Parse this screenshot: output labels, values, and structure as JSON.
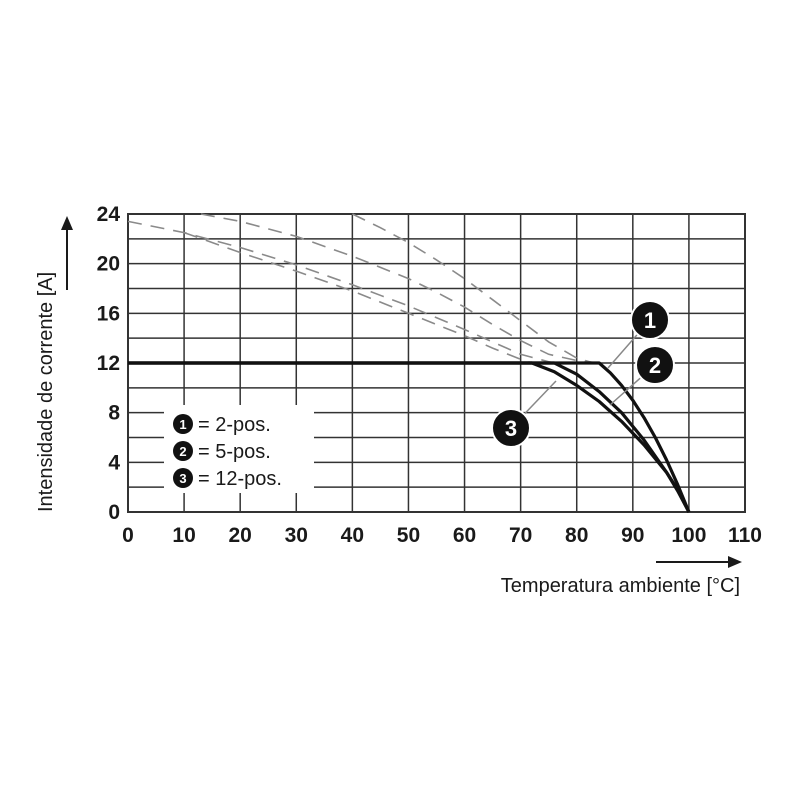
{
  "chart_data": {
    "type": "line",
    "title": "",
    "xlabel": "Temperatura ambiente [°C]",
    "ylabel": "Intensidade de corrente [A]",
    "xlim": [
      0,
      110
    ],
    "ylim": [
      0,
      24
    ],
    "x_ticks": [
      "0",
      "10",
      "20",
      "30",
      "40",
      "50",
      "60",
      "70",
      "80",
      "90",
      "100",
      "110"
    ],
    "y_ticks": [
      "0",
      "4",
      "8",
      "12",
      "16",
      "20",
      "24"
    ],
    "grid": true,
    "legend_position": "bottom-left",
    "series": [
      {
        "badge": "1",
        "legend_label": "= 2-pos.",
        "limit_x": [
          0,
          84,
          86,
          88,
          90,
          92,
          94,
          96,
          98,
          100
        ],
        "limit_y": [
          12,
          12,
          11.2,
          10.2,
          9.0,
          7.6,
          6.0,
          4.2,
          2.2,
          0
        ],
        "dashed_x": [
          13,
          20,
          30,
          40,
          50,
          55,
          60,
          65,
          70,
          75,
          80,
          84
        ],
        "dashed_y": [
          24,
          23.4,
          22.2,
          20.6,
          18.8,
          17.7,
          16.5,
          15.1,
          13.8,
          12.7,
          12.2,
          12
        ]
      },
      {
        "badge": "2",
        "legend_label": "= 5-pos.",
        "limit_x": [
          0,
          76,
          80,
          84,
          88,
          92,
          96,
          98,
          100
        ],
        "limit_y": [
          12,
          12,
          11.1,
          9.7,
          8.0,
          5.8,
          3.2,
          1.7,
          0
        ],
        "dashed_x": [
          0,
          10,
          20,
          30,
          40,
          50,
          60,
          65,
          70,
          75,
          76
        ],
        "dashed_y": [
          23.4,
          22.5,
          21.3,
          19.9,
          18.3,
          16.6,
          14.7,
          13.7,
          12.7,
          12.1,
          12
        ]
      },
      {
        "badge": "3",
        "legend_label": "= 12-pos.",
        "limit_x": [
          0,
          72,
          76,
          80,
          84,
          88,
          92,
          96,
          98,
          100
        ],
        "limit_y": [
          12,
          12,
          11.3,
          10.2,
          8.9,
          7.3,
          5.4,
          3.2,
          1.8,
          0
        ],
        "dashed_x": [
          10,
          20,
          30,
          40,
          50,
          60,
          65,
          70,
          72
        ],
        "dashed_y": [
          22.5,
          20.9,
          19.4,
          17.8,
          16.0,
          14.2,
          13.2,
          12.3,
          12
        ]
      }
    ],
    "dashed_top_x": [
      40,
      45,
      50,
      55,
      60,
      65,
      70,
      75,
      80,
      83
    ],
    "dashed_top_y": [
      24,
      22.9,
      21.7,
      20.3,
      18.8,
      17.1,
      15.4,
      13.7,
      12.4,
      12
    ]
  }
}
